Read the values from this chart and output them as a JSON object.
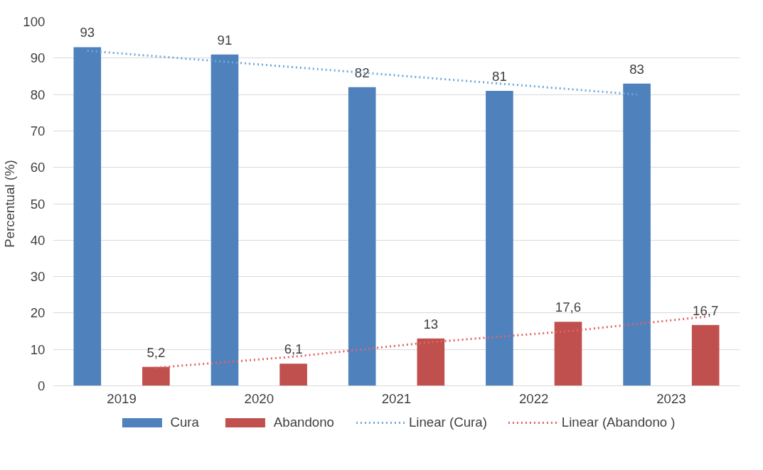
{
  "chart_data": {
    "type": "bar",
    "ylabel": "Percentual (%)",
    "categories": [
      "2019",
      "2020",
      "2021",
      "2022",
      "2023"
    ],
    "series": [
      {
        "name": "Cura",
        "color": "#4f81bd",
        "values": [
          93,
          91,
          82,
          81,
          83
        ],
        "value_labels": [
          "93",
          "91",
          "82",
          "81",
          "83"
        ]
      },
      {
        "name": "Abandono",
        "color": "#c0504d",
        "values": [
          5.2,
          6.1,
          13,
          17.6,
          16.7
        ],
        "value_labels": [
          "5,2",
          "6,1",
          "13",
          "17,6",
          "16,7"
        ]
      },
      {
        "name": "Linear (Cura)",
        "type": "line",
        "color": "#6fa8dc",
        "line_style": "dotted",
        "values": [
          92,
          89,
          86,
          83,
          80
        ]
      },
      {
        "name": "Linear (Abandono )",
        "type": "line",
        "color": "#e06666",
        "line_style": "dotted",
        "values": [
          5,
          8,
          12,
          15,
          19
        ]
      }
    ],
    "ylim": [
      0,
      100
    ],
    "yticks": [
      0,
      10,
      20,
      30,
      40,
      50,
      60,
      70,
      80,
      90,
      100
    ],
    "grid": "y",
    "legend": "bottom"
  }
}
